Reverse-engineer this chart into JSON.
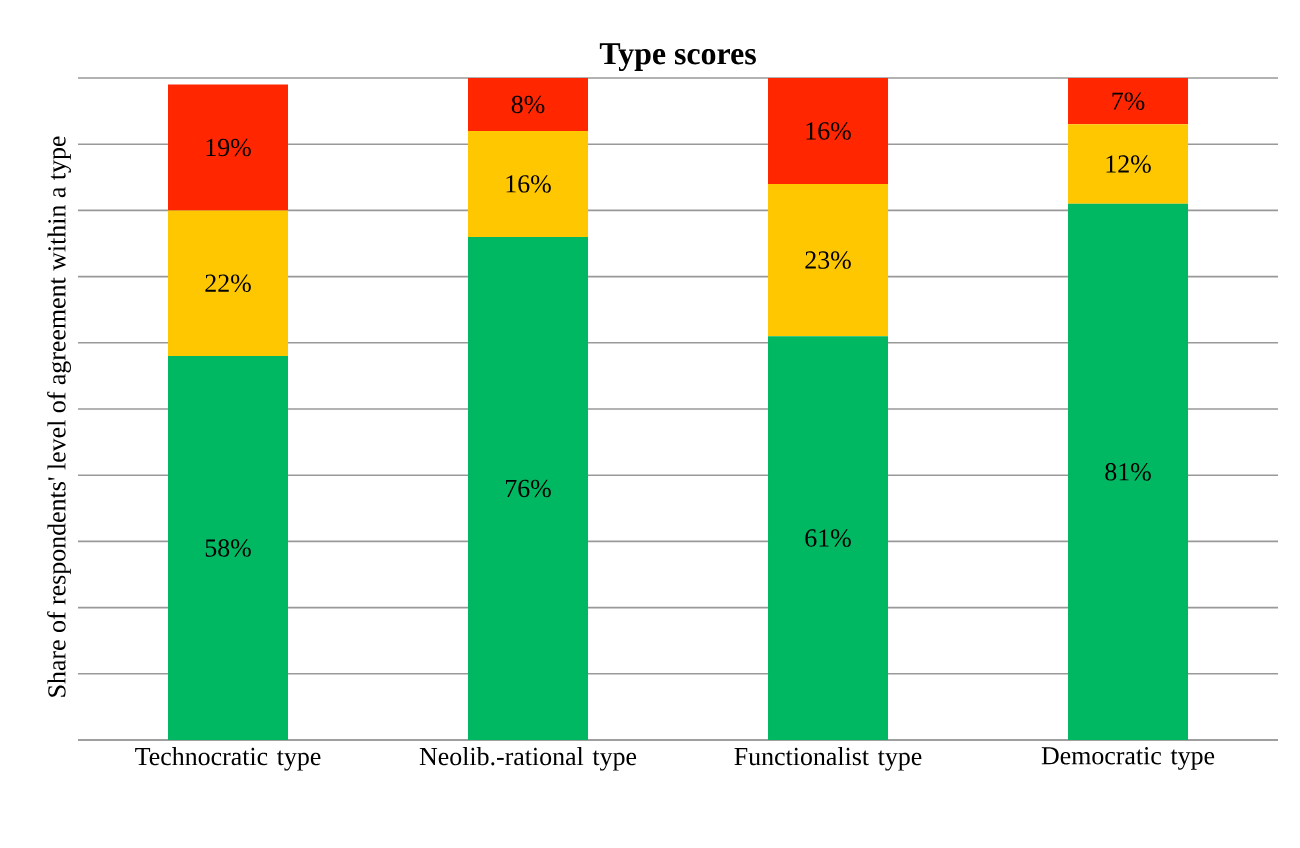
{
  "chart_data": {
    "type": "bar",
    "title": "Type scores",
    "ylabel": "Share of respondents' level of agreement within a type",
    "categories": [
      "Technocratic type",
      "Neolib.-rational type",
      "Functionalist type",
      "Democratic type"
    ],
    "stacked": true,
    "ylim": [
      0,
      100
    ],
    "yticks": [
      {
        "value": 0,
        "label": null
      },
      {
        "value": 10,
        "label": null
      },
      {
        "value": 20,
        "label": null
      },
      {
        "value": 30,
        "label": null
      },
      {
        "value": 40,
        "label": null
      },
      {
        "value": 50,
        "label": null
      },
      {
        "value": 60,
        "label": null
      },
      {
        "value": 70,
        "label": null
      },
      {
        "value": 80,
        "label": null
      },
      {
        "value": 90,
        "label": null
      },
      {
        "value": 100,
        "label": null
      }
    ],
    "grid": "y",
    "tick_labels": "x",
    "series": [
      {
        "color": "#00b862",
        "values": [
          58,
          76,
          61,
          81
        ],
        "value_labels": [
          "58%",
          "76%",
          "61%",
          "81%"
        ]
      },
      {
        "color": "#ffc700",
        "values": [
          22,
          16,
          23,
          12
        ],
        "value_labels": [
          "22%",
          "16%",
          "23%",
          "12%"
        ]
      },
      {
        "color": "#ff2600",
        "values": [
          19,
          8,
          16,
          7
        ],
        "value_labels": [
          "19%",
          "8%",
          "16%",
          "7%"
        ]
      }
    ]
  }
}
